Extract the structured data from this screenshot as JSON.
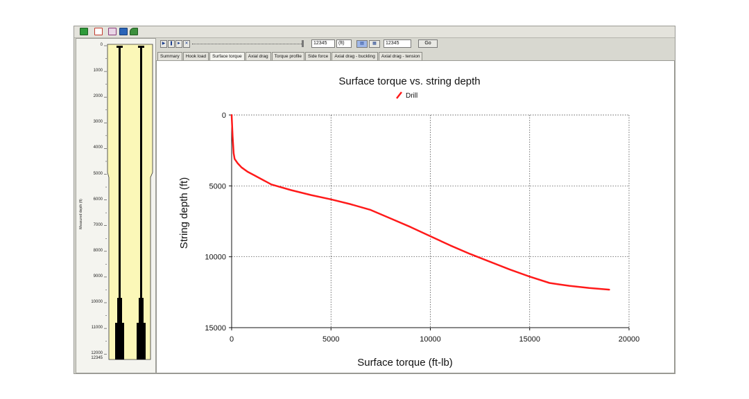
{
  "toolbar": {
    "icons": [
      "exit-icon",
      "pdf-icon",
      "table-icon",
      "save-icon",
      "plot-icon"
    ]
  },
  "wellbore": {
    "axis_title": "Measured depth (ft)",
    "depth_ticks": [
      "0",
      "1000",
      "2000",
      "3000",
      "4000",
      "5000",
      "6000",
      "7000",
      "8000",
      "9000",
      "10000",
      "11000",
      "12000"
    ],
    "bottom_label": "12345",
    "colors": {
      "annulus": "#fbf7b8",
      "pipe": "#000000"
    }
  },
  "playbar": {
    "buttons": [
      "play-icon",
      "pause-icon",
      "step-icon",
      "stop-icon"
    ],
    "depth_value": "12345",
    "unit": "(ft)",
    "goto_value": "12345",
    "go_label": "Go"
  },
  "tabs": [
    {
      "label": "Summary",
      "active": false
    },
    {
      "label": "Hook load",
      "active": false
    },
    {
      "label": "Surface torque",
      "active": true
    },
    {
      "label": "Axial drag",
      "active": false
    },
    {
      "label": "Torque profile",
      "active": false
    },
    {
      "label": "Side force",
      "active": false
    },
    {
      "label": "Axial drag - buckling",
      "active": false
    },
    {
      "label": "Axial drag - tension",
      "active": false
    }
  ],
  "chart_data": {
    "type": "line",
    "title": "Surface torque vs. string depth",
    "xlabel": "Surface torque (ft-lb)",
    "ylabel": "String depth (ft)",
    "xlim": [
      0,
      20000
    ],
    "ylim": [
      0,
      15000
    ],
    "y_inverted": true,
    "x_ticks": [
      "0",
      "5000",
      "10000",
      "15000",
      "20000"
    ],
    "y_ticks": [
      "0",
      "5000",
      "10000",
      "15000"
    ],
    "grid": true,
    "legend": "top-center",
    "series": [
      {
        "name": "Drill",
        "color": "#ff1a1a",
        "x": [
          0,
          50,
          100,
          150,
          300,
          500,
          800,
          1200,
          2000,
          3000,
          4000,
          5000,
          6000,
          7000,
          8000,
          9000,
          10000,
          11000,
          12000,
          13000,
          14000,
          15000,
          16000,
          16500,
          17000,
          18000,
          19000
        ],
        "y": [
          0,
          1500,
          2700,
          3100,
          3400,
          3700,
          4000,
          4300,
          4900,
          5300,
          5650,
          5950,
          6300,
          6700,
          7300,
          7900,
          8550,
          9200,
          9800,
          10350,
          10900,
          11400,
          11850,
          11950,
          12050,
          12200,
          12320
        ]
      }
    ]
  }
}
